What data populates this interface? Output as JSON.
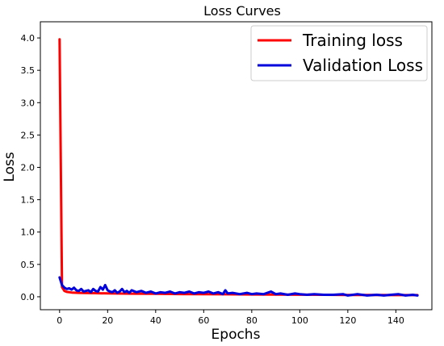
{
  "chart_data": {
    "type": "line",
    "title": "Loss Curves",
    "xlabel": "Epochs",
    "ylabel": "Loss",
    "xlim": [
      -8,
      155
    ],
    "ylim": [
      -0.2,
      4.25
    ],
    "xticks": [
      0,
      20,
      40,
      60,
      80,
      100,
      120,
      140
    ],
    "yticks": [
      0.0,
      0.5,
      1.0,
      1.5,
      2.0,
      2.5,
      3.0,
      3.5,
      4.0
    ],
    "grid": false,
    "legend_position": "top-right",
    "series": [
      {
        "name": "Training loss",
        "color": "#ff0000",
        "x": [
          0,
          1,
          2,
          3,
          5,
          8,
          10,
          15,
          20,
          30,
          40,
          50,
          60,
          70,
          80,
          90,
          100,
          110,
          120,
          130,
          140,
          149
        ],
        "y": [
          3.98,
          0.15,
          0.09,
          0.075,
          0.065,
          0.06,
          0.058,
          0.055,
          0.052,
          0.048,
          0.045,
          0.042,
          0.04,
          0.038,
          0.036,
          0.034,
          0.032,
          0.03,
          0.028,
          0.027,
          0.026,
          0.025
        ]
      },
      {
        "name": "Validation Loss",
        "color": "#0000dd",
        "x": [
          0,
          1,
          2,
          3,
          4,
          5,
          6,
          7,
          8,
          9,
          10,
          11,
          12,
          13,
          14,
          15,
          16,
          17,
          18,
          19,
          20,
          21,
          22,
          23,
          24,
          25,
          26,
          27,
          28,
          29,
          30,
          32,
          34,
          36,
          38,
          40,
          42,
          44,
          46,
          48,
          50,
          52,
          54,
          56,
          58,
          60,
          62,
          64,
          66,
          68,
          69,
          70,
          72,
          75,
          78,
          80,
          82,
          85,
          88,
          90,
          92,
          95,
          98,
          100,
          103,
          106,
          110,
          114,
          118,
          120,
          124,
          128,
          132,
          135,
          138,
          141,
          144,
          147,
          149
        ],
        "y": [
          0.3,
          0.18,
          0.14,
          0.12,
          0.13,
          0.11,
          0.14,
          0.1,
          0.09,
          0.12,
          0.08,
          0.09,
          0.1,
          0.07,
          0.12,
          0.09,
          0.08,
          0.15,
          0.11,
          0.18,
          0.1,
          0.08,
          0.07,
          0.1,
          0.06,
          0.08,
          0.12,
          0.07,
          0.09,
          0.06,
          0.1,
          0.07,
          0.09,
          0.06,
          0.08,
          0.05,
          0.07,
          0.06,
          0.08,
          0.05,
          0.07,
          0.06,
          0.08,
          0.05,
          0.07,
          0.06,
          0.08,
          0.05,
          0.07,
          0.04,
          0.1,
          0.05,
          0.06,
          0.04,
          0.06,
          0.04,
          0.05,
          0.04,
          0.08,
          0.04,
          0.05,
          0.03,
          0.05,
          0.04,
          0.03,
          0.04,
          0.03,
          0.03,
          0.04,
          0.02,
          0.04,
          0.02,
          0.03,
          0.02,
          0.03,
          0.04,
          0.02,
          0.03,
          0.02
        ]
      }
    ]
  }
}
